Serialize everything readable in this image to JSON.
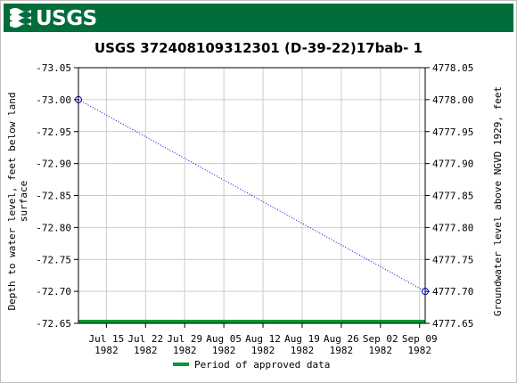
{
  "header": {
    "logo_text": "USGS",
    "brand_color": "#006d3b"
  },
  "chart_data": {
    "type": "line",
    "title": "USGS 372408109312301  (D-39-22)17bab- 1",
    "ylabel_left": "Depth to water level, feet below land surface",
    "ylabel_left_lines": [
      "Depth to water level, feet below land",
      "surface"
    ],
    "ylabel_right": "Groundwater level above NGVD 1929, feet",
    "y_left_range": [
      -73.05,
      -72.65
    ],
    "y_left_reversed": true,
    "y_left_ticks": [
      "-73.05",
      "-73.00",
      "-72.95",
      "-72.90",
      "-72.85",
      "-72.80",
      "-72.75",
      "-72.70",
      "-72.65"
    ],
    "y_right_ticks": [
      "4778.05",
      "4778.00",
      "4777.95",
      "4777.90",
      "4777.85",
      "4777.80",
      "4777.75",
      "4777.70",
      "4777.65"
    ],
    "x_range": [
      "1982-07-10",
      "1982-09-10"
    ],
    "x_ticks": [
      {
        "date": "1982-07-15",
        "line1": "Jul 15",
        "line2": "1982"
      },
      {
        "date": "1982-07-22",
        "line1": "Jul 22",
        "line2": "1982"
      },
      {
        "date": "1982-07-29",
        "line1": "Jul 29",
        "line2": "1982"
      },
      {
        "date": "1982-08-05",
        "line1": "Aug 05",
        "line2": "1982"
      },
      {
        "date": "1982-08-12",
        "line1": "Aug 12",
        "line2": "1982"
      },
      {
        "date": "1982-08-19",
        "line1": "Aug 19",
        "line2": "1982"
      },
      {
        "date": "1982-08-26",
        "line1": "Aug 26",
        "line2": "1982"
      },
      {
        "date": "1982-09-02",
        "line1": "Sep 02",
        "line2": "1982"
      },
      {
        "date": "1982-09-09",
        "line1": "Sep 09",
        "line2": "1982"
      }
    ],
    "series": [
      {
        "points": [
          {
            "date": "1982-07-10",
            "value": -73.0
          },
          {
            "date": "1982-09-10",
            "value": -72.7
          }
        ],
        "color": "#0000cc",
        "style": "dotted",
        "marker": "circle"
      }
    ],
    "approved_period": {
      "start": "1982-07-10",
      "end": "1982-09-10",
      "color": "#009933"
    },
    "legend": {
      "label": "Period of approved data",
      "color": "#009933",
      "position": "bottom-center"
    },
    "grid": true
  }
}
